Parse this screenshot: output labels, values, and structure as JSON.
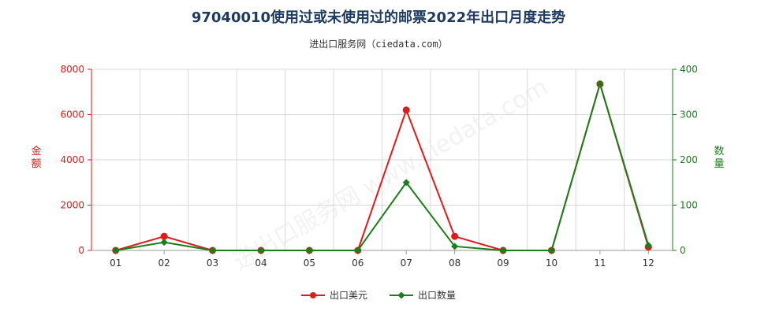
{
  "chart_data": {
    "type": "line",
    "title": "97040010使用过或未使用过的邮票2022年出口月度走势",
    "subtitle": "进出口服务网（ciedata.com）",
    "watermark": "进出口服务网 www.ciedata.com",
    "categories": [
      "01",
      "02",
      "03",
      "04",
      "05",
      "06",
      "07",
      "08",
      "09",
      "10",
      "11",
      "12"
    ],
    "y_left": {
      "label": "金额",
      "ylim": [
        0,
        8000
      ],
      "ticks": [
        0,
        2000,
        4000,
        6000,
        8000
      ],
      "color": "#e31a1c"
    },
    "y_right": {
      "label": "数量",
      "ylim": [
        0,
        400
      ],
      "ticks": [
        0,
        100,
        200,
        300,
        400
      ],
      "color": "#1a7f1a"
    },
    "series": [
      {
        "name": "出口美元",
        "axis": "left",
        "color": "#e31a1c",
        "marker": "circle",
        "values": [
          0,
          620,
          0,
          0,
          0,
          0,
          6200,
          620,
          0,
          0,
          7350,
          150
        ]
      },
      {
        "name": "出口数量",
        "axis": "right",
        "color": "#1a7f1a",
        "marker": "diamond",
        "values": [
          0,
          18,
          0,
          0,
          0,
          0,
          150,
          9,
          0,
          0,
          368,
          11
        ]
      }
    ],
    "grid": true,
    "legend_position": "bottom"
  }
}
